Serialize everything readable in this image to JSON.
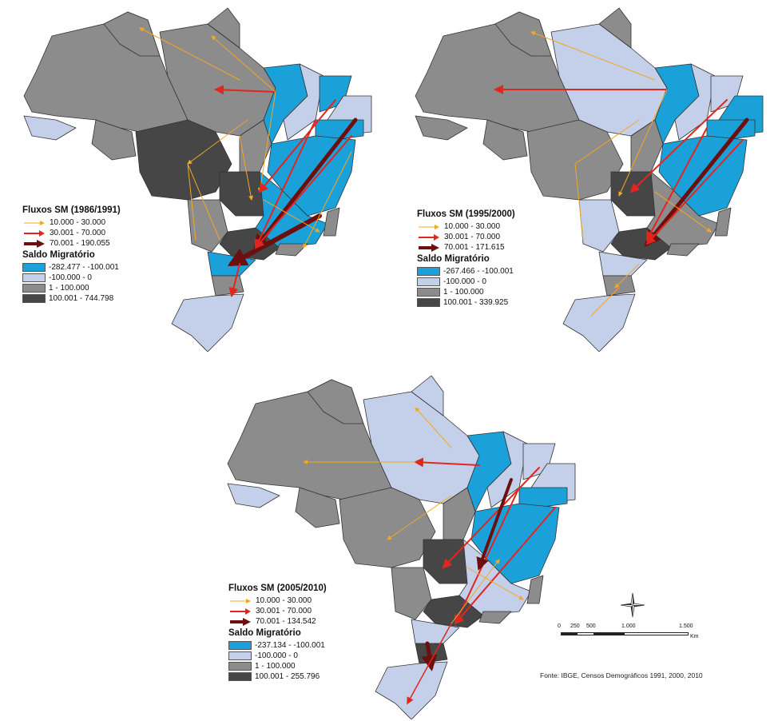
{
  "colors": {
    "strong_negative": "#1ba1d9",
    "weak_negative": "#c4d0ea",
    "low_positive": "#8c8c8c",
    "high_positive": "#464646",
    "flow_low": "#f5a623",
    "flow_mid": "#e0261f",
    "flow_high": "#6b0f0f"
  },
  "maps": [
    {
      "flows_title": "Fluxos SM (1986/1991)",
      "flows_classes": [
        "10.000 - 30.000",
        "30.001 - 70.000",
        "70.001 - 190.055"
      ],
      "balance_title": "Saldo Migratório",
      "balance_classes": [
        "-282.477 - -100.001",
        "-100.000 - 0",
        "1 - 100.000",
        "100.001 - 744.798"
      ]
    },
    {
      "flows_title": "Fluxos SM (1995/2000)",
      "flows_classes": [
        "10.000 - 30.000",
        "30.001 - 70.000",
        "70.001 - 171.615"
      ],
      "balance_title": "Saldo Migratório",
      "balance_classes": [
        "-267.466 - -100.001",
        "-100.000 - 0",
        "1 - 100.000",
        "100.001 - 339.925"
      ]
    },
    {
      "flows_title": "Fluxos SM (2005/2010)",
      "flows_classes": [
        "10.000 - 30.000",
        "30.001 - 70.000",
        "70.001 - 134.542"
      ],
      "balance_title": "Saldo Migratório",
      "balance_classes": [
        "-237.134 - -100.001",
        "-100.000 - 0",
        "1 - 100.000",
        "100.001 - 255.796"
      ]
    }
  ],
  "scale": {
    "ticks": [
      "0",
      "250",
      "500",
      "1.000",
      "1.500"
    ],
    "unit": "Km"
  },
  "source": "Fonte: IBGE, Censos Demográficos 1991, 2000, 2010"
}
